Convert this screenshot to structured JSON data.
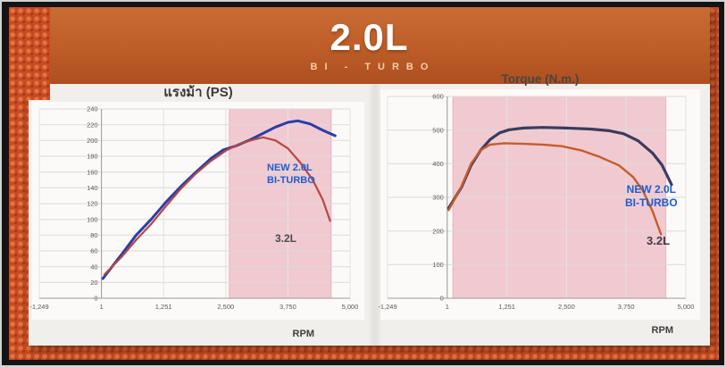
{
  "slide": {
    "title": "2.0L",
    "subtitle": "BI - TURBO"
  },
  "chart_data": [
    {
      "type": "line",
      "title": "แรงม้า (PS)",
      "xlabel": "RPM",
      "ylabel": "",
      "xlim": [
        -1249,
        5000
      ],
      "ylim": [
        0,
        240
      ],
      "ytick_step": 20,
      "xticks": [
        -1249,
        1,
        1251,
        2500,
        3750,
        5000
      ],
      "xtick_labels": [
        "-1,249",
        "1",
        "1,251",
        "2,500",
        "3,750",
        "5,000"
      ],
      "grid": true,
      "legend_position": "none",
      "highlight": {
        "x0": 2570,
        "x1": 4620,
        "color": "#e89aa9",
        "opacity": 0.5
      },
      "series": [
        {
          "name": "NEW 2.0L BI-TURBO",
          "color": "#2b3daa",
          "points": [
            [
              30,
              25
            ],
            [
              400,
              55
            ],
            [
              700,
              80
            ],
            [
              1000,
              100
            ],
            [
              1300,
              122
            ],
            [
              1600,
              142
            ],
            [
              1900,
              160
            ],
            [
              2200,
              177
            ],
            [
              2450,
              188
            ],
            [
              2700,
              193
            ],
            [
              3000,
              201
            ],
            [
              3250,
              209
            ],
            [
              3500,
              217
            ],
            [
              3750,
              223
            ],
            [
              3950,
              225
            ],
            [
              4200,
              221
            ],
            [
              4450,
              213
            ],
            [
              4700,
              206
            ]
          ]
        },
        {
          "name": "3.2L",
          "color": "#b8473e",
          "points": [
            [
              60,
              30
            ],
            [
              400,
              52
            ],
            [
              700,
              74
            ],
            [
              1000,
              94
            ],
            [
              1300,
              117
            ],
            [
              1600,
              139
            ],
            [
              1900,
              158
            ],
            [
              2200,
              174
            ],
            [
              2500,
              187
            ],
            [
              2750,
              195
            ],
            [
              3000,
              200
            ],
            [
              3250,
              204
            ],
            [
              3500,
              200
            ],
            [
              3750,
              190
            ],
            [
              4000,
              172
            ],
            [
              4250,
              150
            ],
            [
              4450,
              125
            ],
            [
              4600,
              98
            ]
          ]
        }
      ],
      "annotations": [
        {
          "text": "NEW 2.0L\nBI-TURBO",
          "color": "#1b5ed2"
        },
        {
          "text": "3.2L",
          "color": "#4b4b55"
        }
      ]
    },
    {
      "type": "line",
      "title": "Torque (N.m.)",
      "xlabel": "RPM",
      "ylabel": "",
      "xlim": [
        -1249,
        5000
      ],
      "ylim": [
        0,
        600
      ],
      "ytick_step": 100,
      "xticks": [
        -1249,
        1,
        1251,
        2500,
        3750,
        5000
      ],
      "xtick_labels": [
        "-1,249",
        "1",
        "1,251",
        "2,500",
        "3,750",
        "5,000"
      ],
      "grid": true,
      "legend_position": "none",
      "highlight": {
        "x0": 120,
        "x1": 4580,
        "color": "#e89aa9",
        "opacity": 0.5
      },
      "series": [
        {
          "name": "NEW 2.0L BI-TURBO",
          "color": "#3c3b5e",
          "points": [
            [
              30,
              268
            ],
            [
              300,
              330
            ],
            [
              500,
              395
            ],
            [
              700,
              440
            ],
            [
              900,
              472
            ],
            [
              1100,
              492
            ],
            [
              1300,
              501
            ],
            [
              1600,
              506
            ],
            [
              2000,
              508
            ],
            [
              2500,
              506
            ],
            [
              3000,
              503
            ],
            [
              3400,
              498
            ],
            [
              3700,
              489
            ],
            [
              4000,
              468
            ],
            [
              4300,
              432
            ],
            [
              4500,
              396
            ],
            [
              4700,
              338
            ]
          ]
        },
        {
          "name": "3.2L",
          "color": "#c65c28",
          "points": [
            [
              30,
              262
            ],
            [
              300,
              332
            ],
            [
              500,
              400
            ],
            [
              700,
              440
            ],
            [
              900,
              457
            ],
            [
              1200,
              461
            ],
            [
              1600,
              459
            ],
            [
              2000,
              457
            ],
            [
              2400,
              452
            ],
            [
              2800,
              440
            ],
            [
              3200,
              420
            ],
            [
              3600,
              395
            ],
            [
              3900,
              360
            ],
            [
              4100,
              320
            ],
            [
              4300,
              260
            ],
            [
              4480,
              190
            ]
          ]
        }
      ],
      "annotations": [
        {
          "text": "NEW 2.0L\nBI-TURBO",
          "color": "#1b5ed2"
        },
        {
          "text": "3.2L",
          "color": "#3c3c49"
        }
      ]
    }
  ]
}
